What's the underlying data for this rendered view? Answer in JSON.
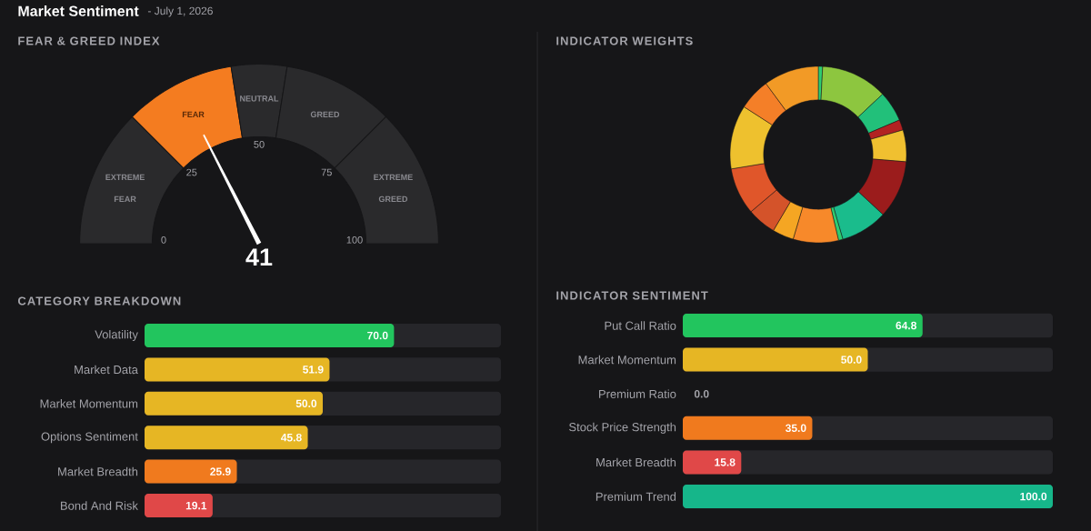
{
  "chart_data": [
    {
      "type": "donut",
      "title": "FEAR & GREED INDEX",
      "categories": [
        "EXTREME FEAR",
        "FEAR",
        "NEUTRAL",
        "GREED",
        "EXTREME GREED"
      ],
      "values": [
        25,
        20,
        10,
        20,
        25
      ],
      "colors": [
        "#2a2a2c",
        "#f47c20",
        "#2a2a2c",
        "#2a2a2c",
        "#2a2a2c"
      ],
      "needle": "FEAR",
      "annotations": [
        "Market Sentiment",
        "- July 1, 2026",
        "41",
        "0",
        "25",
        "50",
        "75",
        "100"
      ]
    },
    {
      "type": "donut",
      "title": "INDICATOR WEIGHTS",
      "categories": [
        null,
        null,
        null,
        null,
        null,
        null,
        null,
        null,
        null,
        null,
        null,
        null,
        null,
        null,
        null
      ],
      "values": [
        0.8,
        12.2,
        5.6,
        1.9,
        5.8,
        10.6,
        8.6,
        0.8,
        8.3,
        3.9,
        5.3,
        8.6,
        11.7,
        5.8,
        10.1
      ],
      "colors": [
        "#2ecc71",
        "#8dc63f",
        "#22c07a",
        "#b22222",
        "#f0c030",
        "#9b1c1c",
        "#1abc8c",
        "#2ecc71",
        "#f7892a",
        "#f5a623",
        "#d4532a",
        "#e0562a",
        "#eec12e",
        "#f47f28",
        "#f29a26"
      ]
    },
    {
      "type": "bar",
      "orientation": "horizontal",
      "title": "CATEGORY BREAKDOWN",
      "categories": [
        "Volatility",
        "Market Data",
        "Market Momentum",
        "Options Sentiment",
        "Market Breadth",
        "Bond And Risk"
      ],
      "values": [
        70.0,
        51.9,
        50.0,
        45.8,
        25.9,
        19.1
      ],
      "value_labels": [
        "70.0",
        "51.9",
        "50.0",
        "45.8",
        "25.9",
        "19.1"
      ],
      "colors": [
        "#22c55e",
        "#e6b624",
        "#e6b624",
        "#e6b624",
        "#f07a1e",
        "#e04848"
      ],
      "xlim": [
        0,
        100
      ]
    },
    {
      "type": "bar",
      "orientation": "horizontal",
      "title": "INDICATOR SENTIMENT",
      "categories": [
        "Put Call Ratio",
        "Market Momentum",
        "Premium Ratio",
        "Stock Price Strength",
        "Market Breadth",
        "Premium Trend"
      ],
      "values": [
        64.8,
        50.0,
        0.0,
        35.0,
        15.8,
        100.0
      ],
      "value_labels": [
        "64.8",
        "50.0",
        "0.0",
        "35.0",
        "15.8",
        "100.0"
      ],
      "colors": [
        "#22c55e",
        "#e6b624",
        "#e04848",
        "#f07a1e",
        "#e04848",
        "#16b68a"
      ],
      "xlim": [
        0,
        100
      ]
    }
  ]
}
